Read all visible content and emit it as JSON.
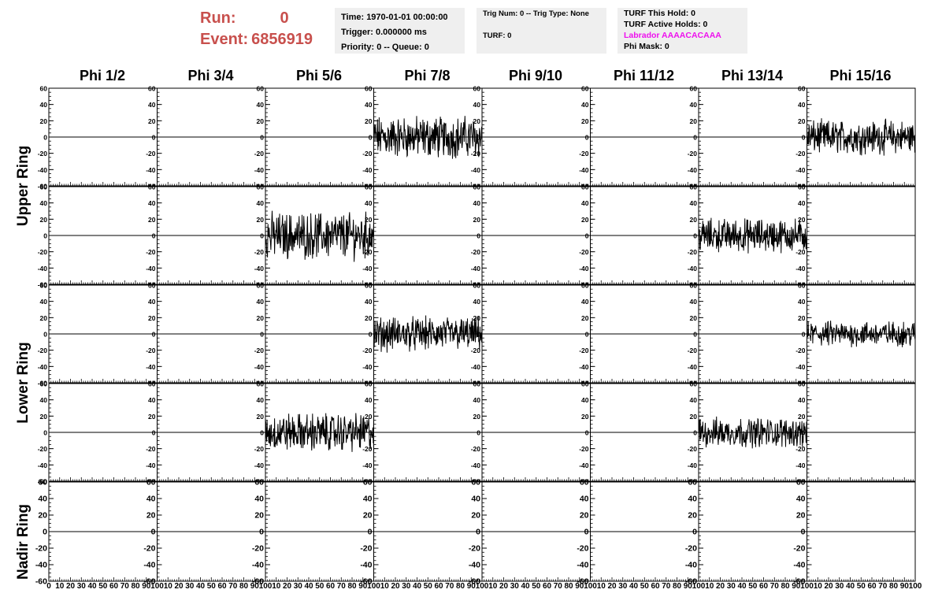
{
  "header": {
    "run_label": "Run:",
    "run_value": "0",
    "event_label": "Event:",
    "event_value": "6856919",
    "time": "Time: 1970-01-01 00:00:00",
    "trigger": "Trigger: 0.000000 ms",
    "priority": "Priority: 0 -- Queue: 0",
    "trig_num": "Trig Num: 0 -- Trig Type: None",
    "turf": "TURF: 0",
    "turf_this_hold": "TURF This Hold: 0",
    "turf_active_holds": "TURF Active Holds: 0",
    "labrador": "Labrador AAAACACAAA",
    "phi_mask": "Phi Mask: 0"
  },
  "ring_labels": [
    "Upper Ring",
    "Lower Ring",
    "Nadir Ring"
  ],
  "colors": {
    "run_text": "#c8504d",
    "labrador_text": "#ee10ee",
    "info_bg": "#efefef",
    "trace": "#000000"
  },
  "chart_data": {
    "type": "line",
    "columns": [
      "Phi 1/2",
      "Phi 3/4",
      "Phi 5/6",
      "Phi 7/8",
      "Phi 9/10",
      "Phi 11/12",
      "Phi 13/14",
      "Phi 15/16"
    ],
    "xlim": [
      0,
      100
    ],
    "ylim": [
      -60,
      60
    ],
    "x_ticks": [
      "0",
      "10",
      "20",
      "30",
      "40",
      "50",
      "60",
      "70",
      "80",
      "90",
      "100"
    ],
    "y_ticks": [
      "60",
      "40",
      "20",
      "0",
      "-20",
      "-40",
      "-60"
    ],
    "grid": false,
    "row_panels": [
      [
        {},
        {},
        {},
        {
          "active": true,
          "amplitude": 20
        },
        {},
        {},
        {},
        {
          "active": true,
          "amplitude": 16
        }
      ],
      [
        {},
        {},
        {
          "active": true,
          "amplitude": 22
        },
        {},
        {},
        {},
        {
          "active": true,
          "amplitude": 16
        },
        {}
      ],
      [
        {},
        {},
        {},
        {
          "active": true,
          "amplitude": 16
        },
        {},
        {},
        {},
        {
          "active": true,
          "amplitude": 12
        }
      ],
      [
        {},
        {},
        {
          "active": true,
          "amplitude": 18
        },
        {},
        {},
        {},
        {
          "active": true,
          "amplitude": 14
        },
        {}
      ],
      [
        {},
        {},
        {},
        {},
        {},
        {},
        {},
        {}
      ]
    ]
  }
}
